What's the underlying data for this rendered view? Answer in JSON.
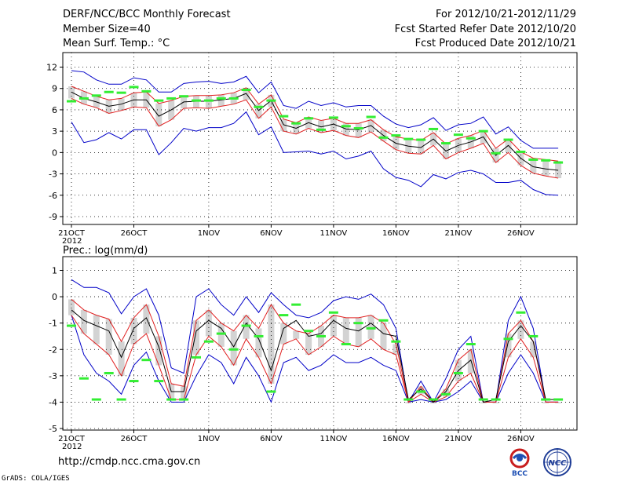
{
  "header": {
    "title": "DERF/NCC/BCC Monthly Forecast",
    "member_size": "Member Size=40",
    "variable": "Mean Surf. Temp.: °C",
    "forecast_period": "For 2012/10/21-2012/11/29",
    "started_date": "Fcst Started Refer Date 2012/10/20",
    "produced_date": "Fcst Produced Date 2012/10/21"
  },
  "footer": {
    "url": "http://cmdp.ncc.cma.gov.cn",
    "grads": "GrADS: COLA/IGES",
    "logo_bcc": "BCC",
    "logo_ncc": "NCC"
  },
  "colors": {
    "median": "#000000",
    "quartile": "#e02020",
    "extreme": "#0000c8",
    "box": "#d3d3d3",
    "member": "#33ee33"
  },
  "chart_data": [
    {
      "type": "box",
      "title": "Mean Surf. Temp.: °C",
      "ylim": [
        -10,
        14
      ],
      "yticks": [
        12,
        9,
        6,
        3,
        0,
        -3,
        -6,
        -9
      ],
      "xtick_labels": [
        "21OCT",
        "26OCT",
        "1NOV",
        "6NOV",
        "11NOV",
        "16NOV",
        "21NOV",
        "26NOV"
      ],
      "xtick_index": [
        0,
        5,
        11,
        16,
        21,
        26,
        31,
        36
      ],
      "year_label": "2012",
      "series": {
        "max": [
          11.5,
          11.3,
          10.2,
          9.6,
          9.6,
          10.5,
          10.2,
          8.5,
          8.5,
          9.7,
          9.9,
          10.0,
          9.7,
          9.9,
          10.7,
          8.4,
          9.9,
          6.6,
          6.2,
          7.2,
          6.6,
          7.0,
          6.4,
          6.6,
          6.6,
          5.1,
          4.0,
          3.5,
          3.9,
          4.9,
          3.1,
          3.9,
          4.1,
          5.0,
          2.6,
          3.6,
          1.7,
          0.6,
          0.6,
          0.6
        ],
        "p75": [
          9.3,
          8.6,
          7.9,
          7.4,
          7.6,
          8.4,
          8.5,
          6.9,
          7.3,
          7.9,
          8.0,
          8.0,
          8.1,
          8.4,
          9.1,
          6.8,
          8.1,
          4.7,
          4.2,
          5.0,
          4.5,
          4.8,
          4.1,
          4.1,
          4.6,
          3.2,
          2.2,
          1.9,
          1.7,
          2.8,
          1.2,
          2.0,
          2.4,
          3.1,
          0.6,
          1.9,
          0.1,
          -0.8,
          -1.0,
          -1.2
        ],
        "median": [
          8.5,
          7.6,
          7.1,
          6.5,
          6.8,
          7.4,
          7.4,
          5.1,
          6.0,
          7.1,
          7.2,
          7.2,
          7.4,
          7.6,
          8.3,
          5.9,
          7.3,
          3.9,
          3.4,
          4.2,
          3.6,
          4.0,
          3.3,
          3.2,
          3.8,
          2.4,
          1.3,
          0.9,
          0.7,
          1.9,
          0.2,
          1.0,
          1.5,
          2.2,
          -0.4,
          1.0,
          -0.8,
          -2.0,
          -2.3,
          -2.5
        ],
        "p25": [
          7.6,
          6.8,
          6.3,
          5.5,
          5.9,
          6.4,
          6.3,
          3.7,
          4.6,
          6.2,
          6.3,
          6.2,
          6.5,
          6.8,
          7.4,
          4.8,
          6.4,
          3.0,
          2.6,
          3.4,
          2.8,
          3.1,
          2.4,
          2.1,
          2.9,
          1.6,
          0.4,
          -0.1,
          -0.2,
          1.0,
          -0.9,
          0.0,
          0.6,
          1.3,
          -1.4,
          0.0,
          -1.8,
          -2.9,
          -3.3,
          -3.6
        ],
        "min": [
          4.3,
          1.4,
          1.8,
          2.8,
          1.9,
          3.2,
          3.2,
          -0.3,
          1.4,
          3.4,
          3.0,
          3.5,
          3.5,
          4.1,
          5.7,
          2.5,
          3.6,
          0.0,
          0.1,
          0.2,
          -0.2,
          0.2,
          -0.9,
          -0.5,
          0.2,
          -2.3,
          -3.5,
          -3.9,
          -4.8,
          -3.1,
          -3.7,
          -2.8,
          -2.5,
          -3.0,
          -4.2,
          -4.2,
          -3.9,
          -5.2,
          -5.9,
          -6.0
        ]
      },
      "ensemble_member": [
        7.2,
        7.6,
        8.0,
        8.5,
        8.4,
        9.2,
        8.6,
        7.3,
        7.6,
        7.9,
        7.3,
        7.3,
        7.6,
        7.6,
        8.8,
        6.4,
        7.3,
        5.1,
        4.1,
        4.8,
        3.2,
        4.9,
        3.7,
        3.4,
        5.0,
        2.1,
        2.4,
        1.9,
        1.8,
        3.3,
        1.3,
        2.5,
        2.0,
        3.0,
        -0.1,
        1.8,
        0.1,
        -1.0,
        -1.1,
        -1.4
      ]
    },
    {
      "type": "box",
      "title": "Prec.: log(mm/d)",
      "ylim": [
        -5,
        1.2
      ],
      "yticks": [
        1,
        0,
        -1,
        -2,
        -3,
        -4,
        -5
      ],
      "xtick_labels": [
        "21OCT",
        "26OCT",
        "1NOV",
        "6NOV",
        "11NOV",
        "16NOV",
        "21NOV",
        "26NOV"
      ],
      "xtick_index": [
        0,
        5,
        11,
        16,
        21,
        26,
        31,
        36
      ],
      "year_label": "2012",
      "series": {
        "max": [
          0.65,
          0.35,
          0.35,
          0.15,
          -0.65,
          0.0,
          0.3,
          -0.7,
          -2.7,
          -2.9,
          0.0,
          0.3,
          -0.3,
          -0.7,
          0.0,
          -0.6,
          0.15,
          -0.3,
          -0.7,
          -0.8,
          -0.6,
          -0.15,
          0.0,
          -0.1,
          0.1,
          -0.3,
          -1.2,
          -4.0,
          -3.2,
          -4.0,
          -3.1,
          -2.0,
          -1.5,
          -4.0,
          -4.0,
          -0.9,
          0.0,
          -1.2,
          -4.0,
          -4.0
        ],
        "p75": [
          -0.1,
          -0.5,
          -0.7,
          -0.85,
          -1.7,
          -0.8,
          -0.3,
          -1.5,
          -3.3,
          -3.4,
          -0.9,
          -0.5,
          -1.0,
          -1.3,
          -0.7,
          -1.2,
          -0.3,
          -1.0,
          -1.3,
          -1.4,
          -1.1,
          -0.7,
          -0.8,
          -0.8,
          -0.7,
          -1.0,
          -1.8,
          -4.0,
          -3.4,
          -4.0,
          -3.5,
          -2.4,
          -2.0,
          -4.0,
          -4.0,
          -1.4,
          -0.9,
          -1.7,
          -4.0,
          -4.0
        ],
        "median": [
          -0.5,
          -0.9,
          -1.1,
          -1.3,
          -2.3,
          -1.2,
          -0.8,
          -1.9,
          -3.6,
          -3.6,
          -1.3,
          -0.9,
          -1.2,
          -1.9,
          -1.0,
          -1.6,
          -2.8,
          -1.2,
          -0.9,
          -1.5,
          -1.4,
          -0.9,
          -1.2,
          -1.3,
          -1.0,
          -1.4,
          -1.5,
          -3.9,
          -3.5,
          -4.0,
          -3.6,
          -2.8,
          -2.4,
          -4.0,
          -3.9,
          -1.7,
          -1.1,
          -1.7,
          -3.9,
          -3.9
        ],
        "p25": [
          -0.7,
          -1.4,
          -1.8,
          -2.2,
          -3.0,
          -1.8,
          -1.4,
          -2.6,
          -3.9,
          -3.9,
          -2.2,
          -1.5,
          -1.9,
          -2.6,
          -1.6,
          -2.3,
          -3.3,
          -1.8,
          -1.6,
          -2.2,
          -1.9,
          -1.5,
          -1.8,
          -1.9,
          -1.6,
          -2.0,
          -2.2,
          -4.0,
          -3.7,
          -4.0,
          -3.8,
          -3.2,
          -2.9,
          -4.0,
          -4.0,
          -2.3,
          -1.6,
          -2.3,
          -4.0,
          -4.0
        ],
        "min": [
          -0.7,
          -2.2,
          -2.9,
          -3.2,
          -3.7,
          -2.6,
          -2.1,
          -3.2,
          -4.0,
          -4.0,
          -3.0,
          -2.2,
          -2.5,
          -3.3,
          -2.3,
          -3.0,
          -4.0,
          -2.5,
          -2.3,
          -2.8,
          -2.6,
          -2.2,
          -2.5,
          -2.5,
          -2.3,
          -2.6,
          -2.8,
          -4.0,
          -3.9,
          -4.0,
          -3.9,
          -3.6,
          -3.2,
          -4.0,
          -4.0,
          -2.9,
          -2.2,
          -2.9,
          -4.0,
          -4.0
        ]
      },
      "ensemble_member": [
        -1.1,
        -3.1,
        -3.9,
        -2.9,
        -3.9,
        -3.2,
        -2.4,
        -3.2,
        -3.9,
        -3.9,
        -2.3,
        -1.7,
        -1.4,
        -2.0,
        -1.1,
        -1.5,
        -3.6,
        -0.7,
        -0.3,
        -1.3,
        -1.5,
        -0.6,
        -1.8,
        -1.0,
        -1.2,
        -0.9,
        -1.7,
        -3.9,
        -3.6,
        -3.9,
        -3.7,
        -2.9,
        -1.8,
        -3.9,
        -3.9,
        -1.6,
        -0.6,
        -1.5,
        -3.9,
        -3.9
      ]
    }
  ]
}
